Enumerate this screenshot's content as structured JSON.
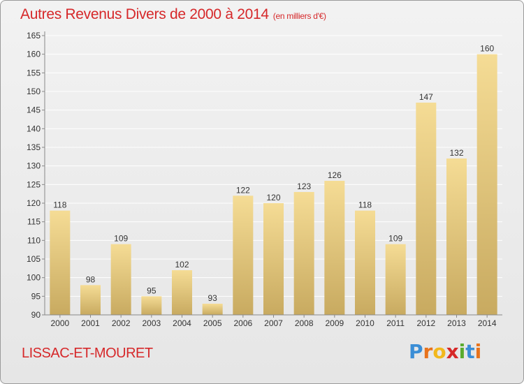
{
  "header": {
    "title": "Autres Revenus Divers de 2000 à 2014",
    "unit": "(en milliers d'€)"
  },
  "footer": {
    "commune": "LISSAC-ET-MOURET",
    "logo_letters": [
      "P",
      "r",
      "o",
      "x",
      "i",
      "t",
      "i"
    ],
    "logo_colors": [
      "#3b8ed6",
      "#e8731c",
      "#f2b81c",
      "#d62828",
      "#5aab2e",
      "#3b8ed6",
      "#e8731c"
    ]
  },
  "chart_data": {
    "type": "bar",
    "title": "Autres Revenus Divers de 2000 à 2014",
    "xlabel": "",
    "ylabel": "",
    "categories": [
      "2000",
      "2001",
      "2002",
      "2003",
      "2004",
      "2005",
      "2006",
      "2007",
      "2008",
      "2009",
      "2010",
      "2011",
      "2012",
      "2013",
      "2014"
    ],
    "values": [
      118,
      98,
      109,
      95,
      102,
      93,
      122,
      120,
      123,
      126,
      118,
      109,
      147,
      132,
      160
    ],
    "ylim": [
      90,
      165
    ],
    "yticks": [
      90,
      95,
      100,
      105,
      110,
      115,
      120,
      125,
      130,
      135,
      140,
      145,
      150,
      155,
      160,
      165
    ],
    "grid": true,
    "colors": {
      "bar_top": "#f5dc95",
      "bar_bottom": "#c8aa60",
      "grid": "#ffffff",
      "axis_text": "#333333"
    }
  }
}
